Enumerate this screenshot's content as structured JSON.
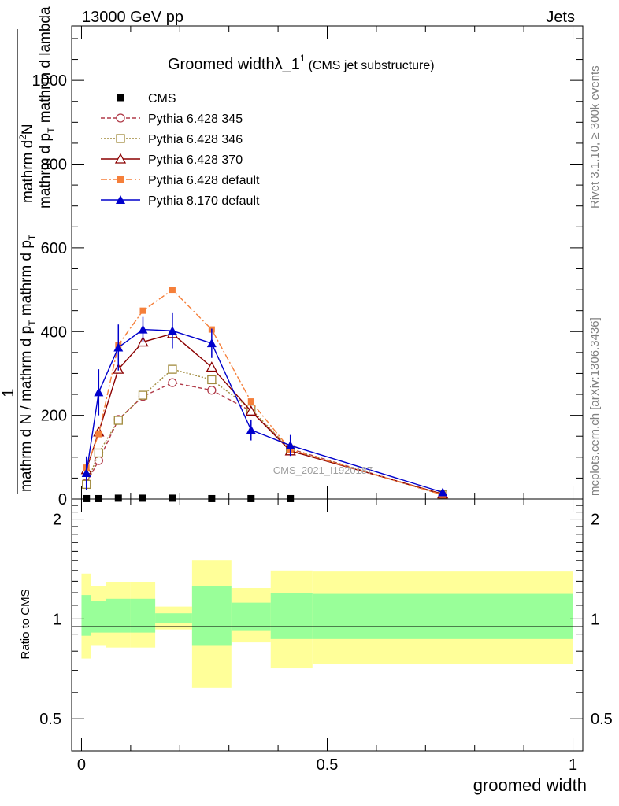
{
  "header": {
    "left": "13000 GeV pp",
    "right": "Jets"
  },
  "side_text": {
    "rivet": "Rivet 3.1.10, ≥ 300k events",
    "mcplots": "mcplots.cern.ch [arXiv:1306.3436]"
  },
  "watermark": "CMS_2021_I1920187",
  "colors": {
    "cms": "#000000",
    "p345": "#b03a48",
    "p346": "#a08a3c",
    "p370": "#8b0000",
    "p6def": "#f57f3a",
    "p8def": "#0000cc",
    "band_outer": "#ffff99",
    "band_inner": "#99ff99"
  },
  "chart_data": [
    {
      "type": "line",
      "title": "Groomed widthλ_1",
      "title_sup": "1",
      "title_suffix": "(CMS jet substructure)",
      "ylabel_line1": "mathrm d",
      "ylabel_sup": "2",
      "ylabel_line1_end": "N",
      "ylabel_line2": "mathrm d p",
      "ylabel_line2_sub": "T",
      "ylabel_line2_end": " mathrm d lambda",
      "ylabel_prefix": "1",
      "ylabel_den": "mathrm d N / mathrm d p",
      "ylabel_den_sub": "T",
      "ylabel_den_end": " mathrm d p",
      "ylabel_den_sub2": "T",
      "xlim": [
        -0.02,
        1.02
      ],
      "ylim": [
        0,
        1130
      ],
      "yticks": [
        0,
        200,
        400,
        600,
        800,
        1000
      ],
      "ytick_labels": [
        "0",
        "200",
        "400",
        "600",
        "800",
        "1000"
      ],
      "legend": [
        {
          "name": "CMS",
          "key": "cms"
        },
        {
          "name": "Pythia 6.428 345",
          "key": "p345"
        },
        {
          "name": "Pythia 6.428 346",
          "key": "p346"
        },
        {
          "name": "Pythia 6.428 370",
          "key": "p370"
        },
        {
          "name": "Pythia 6.428 default",
          "key": "p6def"
        },
        {
          "name": "Pythia 8.170 default",
          "key": "p8def"
        }
      ],
      "cms_points": {
        "x": [
          0.01,
          0.035,
          0.075,
          0.125,
          0.185,
          0.265,
          0.345,
          0.425
        ],
        "y": [
          1,
          1,
          2,
          2,
          2,
          1,
          1,
          1
        ]
      },
      "series": [
        {
          "name": "Pythia 6.428 345",
          "key": "p345",
          "marker": "circle",
          "dash": "5,3",
          "x": [
            0.01,
            0.035,
            0.075,
            0.125,
            0.185,
            0.265,
            0.345,
            0.425,
            0.735
          ],
          "y": [
            38,
            92,
            190,
            245,
            278,
            260,
            210,
            120,
            10
          ]
        },
        {
          "name": "Pythia 6.428 346",
          "key": "p346",
          "marker": "square",
          "dash": "2,2",
          "x": [
            0.01,
            0.035,
            0.075,
            0.125,
            0.185,
            0.265,
            0.345,
            0.425,
            0.735
          ],
          "y": [
            35,
            110,
            188,
            248,
            310,
            285,
            215,
            118,
            10
          ]
        },
        {
          "name": "Pythia 6.428 370",
          "key": "p370",
          "marker": "triangle-open",
          "dash": "",
          "x": [
            0.01,
            0.035,
            0.075,
            0.125,
            0.185,
            0.265,
            0.345,
            0.425,
            0.735
          ],
          "y": [
            70,
            160,
            310,
            375,
            395,
            315,
            210,
            115,
            12
          ]
        },
        {
          "name": "Pythia 6.428 default",
          "key": "p6def",
          "marker": "square-filled",
          "dash": "8,3,2,3",
          "x": [
            0.01,
            0.035,
            0.075,
            0.125,
            0.185,
            0.265,
            0.345,
            0.425,
            0.735
          ],
          "y": [
            75,
            155,
            368,
            450,
            500,
            405,
            233,
            118,
            10
          ]
        },
        {
          "name": "Pythia 8.170 default",
          "key": "p8def",
          "marker": "triangle-filled",
          "dash": "",
          "x": [
            0.01,
            0.035,
            0.075,
            0.125,
            0.185,
            0.265,
            0.345,
            0.425,
            0.735
          ],
          "y": [
            62,
            255,
            362,
            405,
            402,
            372,
            165,
            128,
            16
          ],
          "err": [
            40,
            55,
            55,
            30,
            42,
            35,
            25,
            25,
            4
          ]
        }
      ]
    },
    {
      "type": "area",
      "ylabel": "Ratio to CMS",
      "xlabel": "groomed width",
      "xlim": [
        -0.02,
        1.02
      ],
      "ylim": [
        0.4,
        2.3
      ],
      "log_y": true,
      "yticks": [
        0.5,
        1,
        2
      ],
      "ytick_labels": [
        "0.5",
        "1",
        "2"
      ],
      "xticks": [
        0,
        0.5,
        1
      ],
      "xtick_labels": [
        "0",
        "0.5",
        "1"
      ],
      "bins": [
        {
          "lo": 0.0,
          "hi": 0.02,
          "outer_lo": 0.76,
          "outer_hi": 1.37,
          "inner_lo": 0.89,
          "inner_hi": 1.18
        },
        {
          "lo": 0.02,
          "hi": 0.05,
          "outer_lo": 0.83,
          "outer_hi": 1.26,
          "inner_lo": 0.91,
          "inner_hi": 1.13
        },
        {
          "lo": 0.05,
          "hi": 0.1,
          "outer_lo": 0.82,
          "outer_hi": 1.29,
          "inner_lo": 0.91,
          "inner_hi": 1.15
        },
        {
          "lo": 0.1,
          "hi": 0.15,
          "outer_lo": 0.82,
          "outer_hi": 1.29,
          "inner_lo": 0.91,
          "inner_hi": 1.15
        },
        {
          "lo": 0.15,
          "hi": 0.225,
          "outer_lo": 0.93,
          "outer_hi": 1.09,
          "inner_lo": 0.97,
          "inner_hi": 1.04
        },
        {
          "lo": 0.225,
          "hi": 0.305,
          "outer_lo": 0.62,
          "outer_hi": 1.5,
          "inner_lo": 0.83,
          "inner_hi": 1.26
        },
        {
          "lo": 0.305,
          "hi": 0.385,
          "outer_lo": 0.85,
          "outer_hi": 1.24,
          "inner_lo": 0.92,
          "inner_hi": 1.12
        },
        {
          "lo": 0.385,
          "hi": 0.47,
          "outer_lo": 0.71,
          "outer_hi": 1.4,
          "inner_lo": 0.87,
          "inner_hi": 1.2
        },
        {
          "lo": 0.47,
          "hi": 1.0,
          "outer_lo": 0.73,
          "outer_hi": 1.39,
          "inner_lo": 0.87,
          "inner_hi": 1.19
        }
      ]
    }
  ]
}
